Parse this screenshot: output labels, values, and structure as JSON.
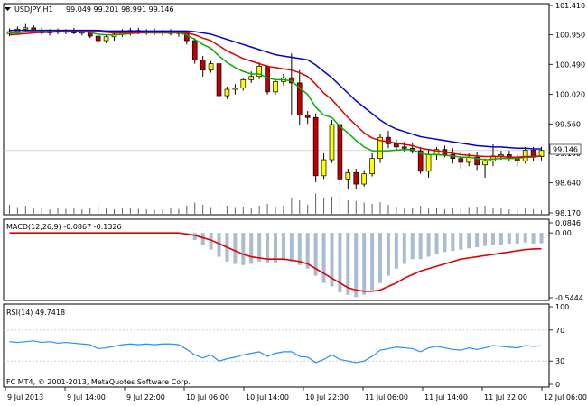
{
  "colors": {
    "background": "#ffffff",
    "frame": "#000000",
    "grid": "#c8c8c8",
    "bull_fill": "#ffff00",
    "bear_fill": "#c00000",
    "candle_outline": "#000000",
    "ma_fast": "#00b000",
    "ma_mid": "#e00000",
    "ma_slow": "#0000dd",
    "volume": "#606060",
    "macd_hist": "#a9bcd0",
    "macd_signal": "#e00000",
    "rsi_line": "#1e90ff",
    "price_label_bg": "#ffffff"
  },
  "main": {
    "menu_icon": "triangle-down-icon",
    "title": "USDJPY,H1",
    "ohlc": "99.049 99.201 98.991 99.146",
    "current_price_label": "99.146"
  },
  "macd": {
    "label": "MACD(12,26,9) -0.0867 -0.1326",
    "tick_labels": [
      "0.0846",
      "0.00",
      "-0.5444"
    ]
  },
  "rsi": {
    "label": "RSI(14) 49.7418",
    "tick_labels": [
      "100",
      "70",
      "30",
      "0"
    ]
  },
  "footer": {
    "copyright": "FC MT4, © 2001-2013, MetaQuotes Software Corp."
  },
  "x_axis": {
    "tick_labels": [
      "9 Jul 2013",
      "9 Jul 14:00",
      "9 Jul 22:00",
      "10 Jul 06:00",
      "10 Jul 14:00",
      "10 Jul 22:00",
      "11 Jul 06:00",
      "11 Jul 14:00",
      "11 Jul 22:00",
      "12 Jul 06:00"
    ]
  },
  "chart_data": [
    {
      "type": "candlestick",
      "title": "USDJPY,H1",
      "yticks": [
        "101.410",
        "100.950",
        "100.490",
        "100.020",
        "99.560",
        "99.100",
        "98.640",
        "98.170"
      ],
      "ylim": [
        98.17,
        101.41
      ],
      "current_price": 99.146,
      "series": [
        {
          "name": "candles",
          "ohlc": [
            [
              100.97,
              101.05,
              100.93,
              101.0
            ],
            [
              101.0,
              101.08,
              100.95,
              101.04
            ],
            [
              101.04,
              101.12,
              101.0,
              101.06
            ],
            [
              101.06,
              101.1,
              100.98,
              101.02
            ],
            [
              101.02,
              101.06,
              100.95,
              100.98
            ],
            [
              100.98,
              101.04,
              100.94,
              101.01
            ],
            [
              101.01,
              101.05,
              100.96,
              100.99
            ],
            [
              100.99,
              101.04,
              100.96,
              101.02
            ],
            [
              101.02,
              101.06,
              100.96,
              100.98
            ],
            [
              100.98,
              101.02,
              100.94,
              100.99
            ],
            [
              100.99,
              101.03,
              100.9,
              100.93
            ],
            [
              100.93,
              100.97,
              100.8,
              100.86
            ],
            [
              100.86,
              100.96,
              100.82,
              100.92
            ],
            [
              100.92,
              100.98,
              100.86,
              100.96
            ],
            [
              100.96,
              101.04,
              100.92,
              101.0
            ],
            [
              101.0,
              101.06,
              100.94,
              101.02
            ],
            [
              101.02,
              101.06,
              100.96,
              100.99
            ],
            [
              100.99,
              101.04,
              100.95,
              101.01
            ],
            [
              101.01,
              101.05,
              100.95,
              100.98
            ],
            [
              100.98,
              101.03,
              100.94,
              101.0
            ],
            [
              101.0,
              101.04,
              100.94,
              100.97
            ],
            [
              100.97,
              101.02,
              100.92,
              100.99
            ],
            [
              100.99,
              101.0,
              100.8,
              100.86
            ],
            [
              100.86,
              100.9,
              100.5,
              100.56
            ],
            [
              100.56,
              100.62,
              100.3,
              100.4
            ],
            [
              100.4,
              100.54,
              100.36,
              100.5
            ],
            [
              100.5,
              100.56,
              99.9,
              100.0
            ],
            [
              100.0,
              100.14,
              99.95,
              100.1
            ],
            [
              100.1,
              100.18,
              100.02,
              100.12
            ],
            [
              100.12,
              100.28,
              100.08,
              100.25
            ],
            [
              100.25,
              100.38,
              100.2,
              100.3
            ],
            [
              100.3,
              100.52,
              100.26,
              100.46
            ],
            [
              100.46,
              100.48,
              100.02,
              100.06
            ],
            [
              100.06,
              100.26,
              100.02,
              100.22
            ],
            [
              100.22,
              100.34,
              100.16,
              100.28
            ],
            [
              100.28,
              100.66,
              99.7,
              100.2
            ],
            [
              100.2,
              100.4,
              99.55,
              99.7
            ],
            [
              99.7,
              99.76,
              99.56,
              99.66
            ],
            [
              99.66,
              99.72,
              98.65,
              98.75
            ],
            [
              98.75,
              99.1,
              98.7,
              99.0
            ],
            [
              99.0,
              99.62,
              98.95,
              99.55
            ],
            [
              99.55,
              99.6,
              98.6,
              98.7
            ],
            [
              98.7,
              98.86,
              98.54,
              98.8
            ],
            [
              98.8,
              98.86,
              98.55,
              98.62
            ],
            [
              98.62,
              98.84,
              98.58,
              98.78
            ],
            [
              98.78,
              99.1,
              98.74,
              99.02
            ],
            [
              99.02,
              99.4,
              98.95,
              99.35
            ],
            [
              99.35,
              99.45,
              99.18,
              99.25
            ],
            [
              99.25,
              99.32,
              99.14,
              99.2
            ],
            [
              99.2,
              99.28,
              99.12,
              99.18
            ],
            [
              99.18,
              99.26,
              99.1,
              99.14
            ],
            [
              99.14,
              99.2,
              98.78,
              98.82
            ],
            [
              98.82,
              99.16,
              98.72,
              99.08
            ],
            [
              99.08,
              99.2,
              99.0,
              99.16
            ],
            [
              99.16,
              99.22,
              99.04,
              99.08
            ],
            [
              99.08,
              99.18,
              98.94,
              99.02
            ],
            [
              99.02,
              99.12,
              98.86,
              98.96
            ],
            [
              98.96,
              99.1,
              98.9,
              99.04
            ],
            [
              99.04,
              99.12,
              98.84,
              98.92
            ],
            [
              98.92,
              99.02,
              98.72,
              98.98
            ],
            [
              98.98,
              99.24,
              98.9,
              99.06
            ],
            [
              99.06,
              99.14,
              99.0,
              99.08
            ],
            [
              99.08,
              99.14,
              98.98,
              99.02
            ],
            [
              99.02,
              99.08,
              98.9,
              98.98
            ],
            [
              98.98,
              99.2,
              98.94,
              99.15
            ],
            [
              99.15,
              99.2,
              98.98,
              99.05
            ],
            [
              99.049,
              99.201,
              98.991,
              99.146
            ]
          ]
        },
        {
          "name": "ma-fast",
          "values": [
            100.98,
            100.98,
            101.0,
            101.0,
            101.0,
            101.0,
            101.0,
            101.0,
            101.0,
            101.0,
            100.99,
            100.96,
            100.95,
            100.95,
            100.96,
            100.97,
            100.98,
            100.98,
            100.98,
            100.98,
            100.98,
            100.98,
            100.95,
            100.88,
            100.8,
            100.74,
            100.62,
            100.52,
            100.44,
            100.38,
            100.34,
            100.34,
            100.28,
            100.25,
            100.25,
            100.23,
            100.12,
            100.02,
            99.82,
            99.7,
            99.66,
            99.52,
            99.42,
            99.3,
            99.2,
            99.14,
            99.14,
            99.14,
            99.15,
            99.16,
            99.16,
            99.1,
            99.08,
            99.08,
            99.07,
            99.06,
            99.04,
            99.04,
            99.02,
            99.0,
            99.01,
            99.02,
            99.02,
            99.02,
            99.04,
            99.04,
            99.06
          ]
        },
        {
          "name": "ma-mid",
          "values": [
            100.95,
            100.96,
            100.97,
            100.98,
            100.99,
            100.99,
            101.0,
            101.0,
            101.0,
            101.0,
            101.0,
            101.0,
            100.99,
            100.98,
            100.98,
            100.98,
            100.98,
            100.99,
            100.99,
            100.99,
            100.99,
            100.99,
            100.98,
            100.95,
            100.9,
            100.86,
            100.78,
            100.7,
            100.64,
            100.58,
            100.54,
            100.5,
            100.46,
            100.44,
            100.42,
            100.4,
            100.36,
            100.3,
            100.18,
            100.04,
            99.94,
            99.8,
            99.66,
            99.54,
            99.42,
            99.34,
            99.3,
            99.28,
            99.26,
            99.24,
            99.22,
            99.18,
            99.16,
            99.14,
            99.12,
            99.1,
            99.08,
            99.07,
            99.06,
            99.05,
            99.05,
            99.05,
            99.04,
            99.04,
            99.05,
            99.05,
            99.06
          ]
        },
        {
          "name": "ma-slow",
          "values": [
            101.02,
            101.02,
            101.02,
            101.02,
            101.02,
            101.02,
            101.02,
            101.02,
            101.02,
            101.02,
            101.02,
            101.02,
            101.01,
            101.01,
            101.01,
            101.01,
            101.01,
            101.01,
            101.01,
            101.01,
            101.01,
            101.01,
            101.01,
            101.0,
            100.98,
            100.96,
            100.92,
            100.88,
            100.84,
            100.8,
            100.76,
            100.72,
            100.68,
            100.64,
            100.62,
            100.6,
            100.58,
            100.56,
            100.48,
            100.38,
            100.28,
            100.16,
            100.04,
            99.92,
            99.82,
            99.72,
            99.62,
            99.54,
            99.48,
            99.44,
            99.4,
            99.36,
            99.34,
            99.32,
            99.3,
            99.28,
            99.26,
            99.24,
            99.22,
            99.21,
            99.2,
            99.2,
            99.19,
            99.18,
            99.18,
            99.17,
            99.17
          ]
        },
        {
          "name": "volume",
          "values": [
            0.2,
            0.15,
            0.18,
            0.12,
            0.14,
            0.1,
            0.13,
            0.11,
            0.12,
            0.1,
            0.14,
            0.2,
            0.12,
            0.1,
            0.13,
            0.12,
            0.11,
            0.1,
            0.09,
            0.1,
            0.12,
            0.11,
            0.18,
            0.25,
            0.2,
            0.15,
            0.3,
            0.18,
            0.15,
            0.16,
            0.14,
            0.18,
            0.22,
            0.16,
            0.18,
            0.35,
            0.3,
            0.2,
            0.45,
            0.35,
            0.38,
            0.42,
            0.3,
            0.28,
            0.25,
            0.22,
            0.26,
            0.2,
            0.16,
            0.14,
            0.12,
            0.18,
            0.14,
            0.12,
            0.1,
            0.14,
            0.12,
            0.15,
            0.16,
            0.18,
            0.14,
            0.12,
            0.1,
            0.09,
            0.12,
            0.1,
            0.08
          ]
        }
      ]
    },
    {
      "type": "bar",
      "title": "MACD(12,26,9) -0.0867 -0.1326",
      "ylim": [
        -0.5444,
        0.0846
      ],
      "series": [
        {
          "name": "histogram",
          "values": [
            0,
            0,
            0,
            0,
            0,
            0,
            0,
            0,
            0,
            0,
            0,
            0,
            0,
            0,
            0,
            0,
            0,
            0,
            0,
            0,
            0,
            0,
            -0.02,
            -0.06,
            -0.1,
            -0.14,
            -0.2,
            -0.24,
            -0.26,
            -0.27,
            -0.26,
            -0.24,
            -0.25,
            -0.25,
            -0.23,
            -0.24,
            -0.27,
            -0.3,
            -0.36,
            -0.42,
            -0.45,
            -0.5,
            -0.52,
            -0.54,
            -0.52,
            -0.48,
            -0.42,
            -0.36,
            -0.3,
            -0.26,
            -0.22,
            -0.22,
            -0.2,
            -0.18,
            -0.16,
            -0.15,
            -0.14,
            -0.13,
            -0.12,
            -0.11,
            -0.1,
            -0.1,
            -0.09,
            -0.09,
            -0.08,
            -0.09,
            -0.0867
          ]
        },
        {
          "name": "signal",
          "values": [
            0,
            0,
            0,
            0,
            0,
            0,
            0,
            0,
            0,
            0,
            0,
            0,
            0,
            0,
            0,
            0,
            0,
            0,
            0,
            0,
            0,
            0,
            -0.01,
            -0.02,
            -0.04,
            -0.06,
            -0.09,
            -0.12,
            -0.15,
            -0.18,
            -0.2,
            -0.21,
            -0.22,
            -0.22,
            -0.22,
            -0.23,
            -0.24,
            -0.26,
            -0.3,
            -0.34,
            -0.38,
            -0.42,
            -0.46,
            -0.48,
            -0.49,
            -0.49,
            -0.48,
            -0.45,
            -0.42,
            -0.38,
            -0.35,
            -0.32,
            -0.3,
            -0.28,
            -0.26,
            -0.24,
            -0.22,
            -0.21,
            -0.2,
            -0.19,
            -0.18,
            -0.17,
            -0.16,
            -0.15,
            -0.14,
            -0.135,
            -0.1326
          ]
        }
      ]
    },
    {
      "type": "line",
      "title": "RSI(14) 49.7418",
      "ylim": [
        0,
        100
      ],
      "levels": [
        70,
        30
      ],
      "series": [
        {
          "name": "rsi",
          "values": [
            55,
            54,
            55,
            56,
            54,
            55,
            53,
            54,
            53,
            52,
            51,
            46,
            47,
            49,
            51,
            52,
            51,
            52,
            51,
            52,
            52,
            51,
            45,
            38,
            34,
            38,
            30,
            33,
            35,
            38,
            40,
            42,
            36,
            40,
            42,
            42,
            36,
            35,
            28,
            32,
            38,
            32,
            30,
            28,
            30,
            36,
            44,
            46,
            48,
            47,
            46,
            42,
            47,
            49,
            47,
            45,
            44,
            47,
            45,
            47,
            50,
            49,
            48,
            47,
            50,
            49,
            49.7
          ]
        }
      ]
    }
  ]
}
